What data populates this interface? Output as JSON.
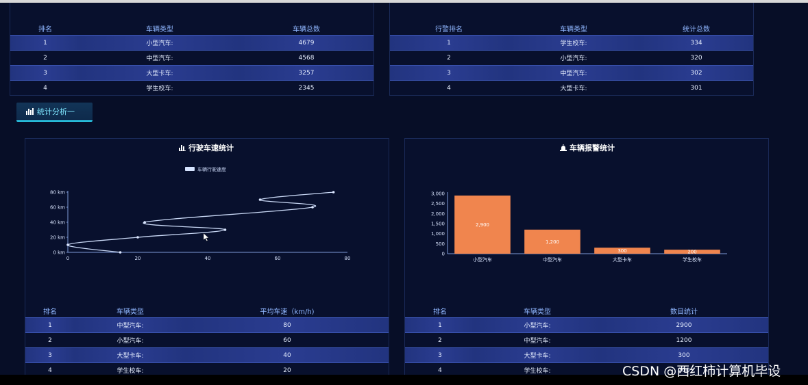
{
  "top_left_table": {
    "headers": [
      "排名",
      "车辆类型",
      "车辆总数"
    ],
    "rows": [
      [
        "1",
        "小型汽车:",
        "4679"
      ],
      [
        "2",
        "中型汽车:",
        "4568"
      ],
      [
        "3",
        "大型卡车:",
        "3257"
      ],
      [
        "4",
        "学生校车:",
        "2345"
      ]
    ]
  },
  "top_right_table": {
    "headers": [
      "行警排名",
      "车辆类型",
      "统计总数"
    ],
    "rows": [
      [
        "1",
        "学生校车:",
        "334"
      ],
      [
        "2",
        "小型汽车:",
        "320"
      ],
      [
        "3",
        "中型汽车:",
        "302"
      ],
      [
        "4",
        "大型卡车:",
        "301"
      ]
    ]
  },
  "section_button": {
    "label": "统计分析一",
    "icon": "bar-chart-icon"
  },
  "speed_chart": {
    "title": "行驶车速统计",
    "icon": "bar-chart-icon",
    "legend": "车辆行驶速度",
    "y_ticks": [
      "80 km",
      "60 km",
      "40 km",
      "20 km",
      "0 km"
    ],
    "x_ticks": [
      "0",
      "20",
      "40",
      "60",
      "80"
    ]
  },
  "alarm_chart": {
    "title": "车辆报警统计",
    "icon": "alarm-icon",
    "y_ticks": [
      "3,000",
      "2,500",
      "2,000",
      "1,500",
      "1,000",
      "500",
      "0"
    ]
  },
  "bottom_left_table": {
    "headers": [
      "排名",
      "车辆类型",
      "平均车速（km/h)"
    ],
    "rows": [
      [
        "1",
        "中型汽车:",
        "80"
      ],
      [
        "2",
        "小型汽车:",
        "60"
      ],
      [
        "3",
        "大型卡车:",
        "40"
      ],
      [
        "4",
        "学生校车:",
        "20"
      ]
    ]
  },
  "bottom_right_table": {
    "headers": [
      "排名",
      "车辆类型",
      "数目统计"
    ],
    "rows": [
      [
        "1",
        "小型汽车:",
        "2900"
      ],
      [
        "2",
        "中型汽车:",
        "1200"
      ],
      [
        "3",
        "大型卡车:",
        "300"
      ],
      [
        "4",
        "学生校车:",
        "200"
      ]
    ]
  },
  "watermark": "CSDN @西红柿计算机毕设",
  "chart_data": [
    {
      "type": "line",
      "title": "行驶车速统计",
      "series": [
        {
          "name": "车辆行驶速度",
          "x": [
            15,
            0,
            20,
            45,
            22,
            70,
            55,
            76
          ],
          "y": [
            0,
            10,
            20,
            30,
            40,
            60,
            70,
            80
          ]
        }
      ],
      "xlim": [
        0,
        80
      ],
      "ylim": [
        0,
        80
      ],
      "legend": "top-center"
    },
    {
      "type": "bar",
      "title": "车辆报警统计",
      "categories": [
        "小型汽车",
        "中型汽车",
        "大型卡车",
        "学生校车"
      ],
      "values": [
        2900,
        1200,
        300,
        200
      ],
      "data_labels": [
        "2,900",
        "1,200",
        "300",
        "200"
      ],
      "ylim": [
        0,
        3000
      ],
      "color": "#f0854e"
    }
  ]
}
